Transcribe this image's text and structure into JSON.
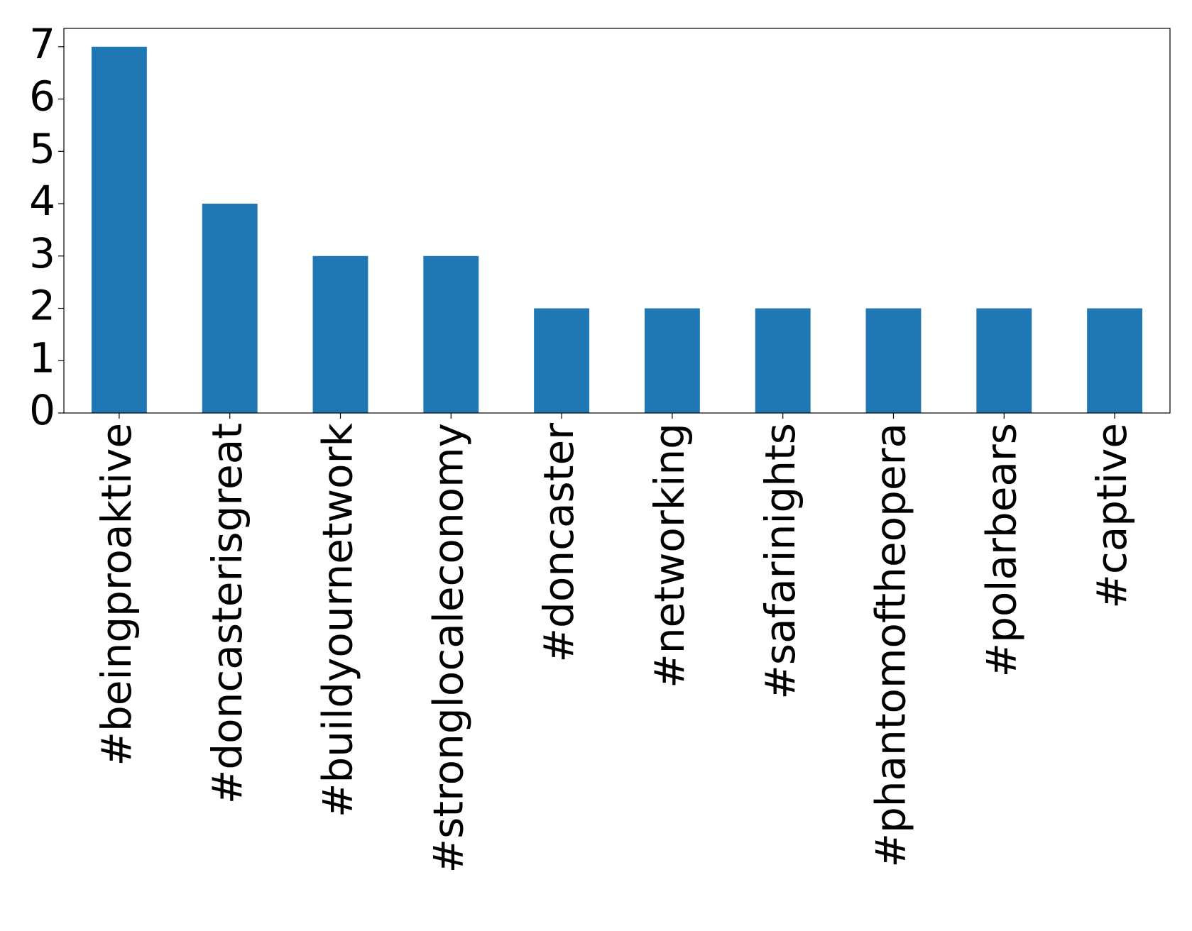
{
  "chart_data": {
    "type": "bar",
    "categories": [
      "#beingproaktive",
      "#doncasterisgreat",
      "#buildyournetwork",
      "#stronglocaleconomy",
      "#doncaster",
      "#networking",
      "#safarinights",
      "#phantomoftheopera",
      "#polarbears",
      "#captive"
    ],
    "values": [
      7,
      4,
      3,
      3,
      2,
      2,
      2,
      2,
      2,
      2
    ],
    "color": "#1f77b4",
    "ylim": [
      0,
      7.35
    ],
    "yticks": [
      0,
      1,
      2,
      3,
      4,
      5,
      6,
      7
    ],
    "grid": false
  }
}
